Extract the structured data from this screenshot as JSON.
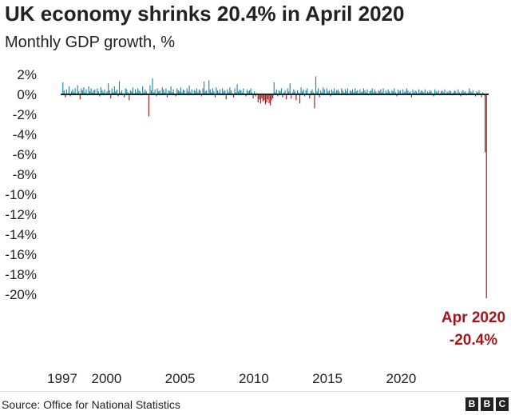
{
  "chart_data": {
    "type": "bar",
    "title": "UK economy shrinks 20.4% in April 2020",
    "subtitle": "Monthly GDP growth, %",
    "ylim": [
      -20,
      2
    ],
    "y_ticks": [
      2,
      0,
      -2,
      -4,
      -6,
      -8,
      -10,
      -12,
      -14,
      -16,
      -18,
      -20
    ],
    "y_tick_labels": [
      "2%",
      "0%",
      "-2%",
      "-4%",
      "-6%",
      "-8%",
      "-10%",
      "-12%",
      "-14%",
      "-16%",
      "-18%",
      "-20%"
    ],
    "x_tick_labels": [
      "1997",
      "2000",
      "2005",
      "2010",
      "2015",
      "2020"
    ],
    "start_year": 1997,
    "start_month": 1,
    "values": [
      1.2,
      0.4,
      -0.3,
      0.5,
      0.1,
      0.8,
      -0.2,
      0.3,
      0.5,
      0.2,
      0.6,
      0.1,
      0.9,
      0.3,
      -0.5,
      0.6,
      0.4,
      0.7,
      0.2,
      0.5,
      -0.1,
      0.8,
      0.3,
      0.6,
      0.2,
      0.4,
      0.5,
      0.1,
      0.6,
      0.3,
      -0.2,
      0.7,
      0.4,
      0.2,
      0.5,
      0.1,
      0.3,
      1.1,
      0.4,
      -0.4,
      0.6,
      0.2,
      0.8,
      0.3,
      0.5,
      -0.2,
      1.3,
      0.2,
      0.4,
      0.1,
      -0.3,
      0.6,
      0.5,
      0.2,
      -0.6,
      0.4,
      0.3,
      0.7,
      0.1,
      0.5,
      0.2,
      0.6,
      0.4,
      0.3,
      -0.1,
      0.8,
      0.2,
      0.5,
      0.3,
      0.1,
      -2.2,
      0.9,
      0.4,
      1.6,
      0.2,
      0.5,
      -0.2,
      0.6,
      0.3,
      0.4,
      0.1,
      0.7,
      0.5,
      0.2,
      0.6,
      -0.3,
      0.4,
      0.3,
      0.8,
      0.2,
      0.5,
      0.1,
      -0.2,
      0.6,
      0.4,
      0.3,
      0.7,
      0.2,
      0.5,
      0.4,
      0.1,
      0.6,
      0.3,
      0.9,
      0.2,
      0.5,
      -0.1,
      0.4,
      0.3,
      0.6,
      0.2,
      0.5,
      0.4,
      -0.2,
      0.6,
      1.3,
      0.3,
      0.4,
      0.1,
      1.4,
      0.5,
      0.2,
      0.6,
      0.3,
      -0.3,
      0.7,
      0.4,
      0.2,
      0.5,
      0.1,
      0.6,
      0.3,
      0.4,
      -0.5,
      0.5,
      0.2,
      0.7,
      0.4,
      0.1,
      -0.3,
      0.6,
      0.2,
      1.0,
      0.3,
      0.5,
      0.4,
      0.2,
      0.6,
      0.1,
      -0.2,
      0.5,
      0.3,
      0.4,
      0.6,
      0.2,
      -0.4,
      0.3,
      -0.2,
      0.1,
      -0.8,
      -0.5,
      -0.9,
      -0.4,
      -0.7,
      -0.6,
      -1.0,
      -0.8,
      -0.5,
      -0.9,
      -1.1,
      -0.6,
      -0.4,
      1.2,
      0.2,
      0.5,
      -0.2,
      0.4,
      0.3,
      0.6,
      -0.3,
      0.2,
      0.4,
      -0.5,
      0.6,
      0.3,
      1.1,
      -0.4,
      0.2,
      0.5,
      0.3,
      -0.6,
      0.4,
      0.2,
      -0.9,
      0.7,
      0.3,
      0.5,
      -0.2,
      0.4,
      0.6,
      0.1,
      -0.4,
      0.3,
      0.5,
      0.2,
      -1.4,
      1.8,
      0.3,
      0.6,
      -0.3,
      0.4,
      0.2,
      0.7,
      0.5,
      0.1,
      0.6,
      0.3,
      0.4,
      -0.2,
      0.5,
      0.3,
      0.6,
      0.2,
      0.4,
      0.5,
      0.3,
      0.1,
      0.6,
      0.4,
      0.2,
      0.5,
      0.3,
      0.6,
      0.1,
      0.4,
      0.3,
      0.5,
      0.2,
      0.6,
      0.3,
      0.4,
      0.1,
      0.5,
      0.2,
      0.3,
      0.6,
      0.4,
      0.2,
      0.5,
      -0.1,
      0.3,
      0.4,
      0.6,
      0.2,
      0.5,
      0.3,
      0.1,
      0.4,
      0.3,
      0.5,
      0.2,
      0.6,
      0.1,
      0.4,
      0.2,
      0.5,
      0.3,
      0.1,
      0.4,
      0.3,
      0.6,
      0.2,
      -0.2,
      0.5,
      0.3,
      0.4,
      0.1,
      0.5,
      0.2,
      0.3,
      0.6,
      0.4,
      0.2,
      0.3,
      -0.3,
      0.5,
      0.2,
      0.4,
      0.3,
      0.1,
      0.5,
      0.2,
      0.4,
      0.3,
      0.2,
      0.5,
      0.1,
      0.3,
      0.2,
      0.4,
      0.3,
      0.1,
      -0.2,
      0.5,
      0.3,
      0.2,
      0.4,
      -0.1,
      0.3,
      0.4,
      0.2,
      0.5,
      0.1,
      0.3,
      0.2,
      0.4,
      0.3,
      -0.1,
      0.2,
      0.4,
      0.3,
      0.1,
      0.5,
      0.2,
      -0.2,
      0.3,
      0.4,
      0.2,
      0.3,
      -0.1,
      0.2,
      0.6,
      0.3,
      0.2,
      0.4,
      0.1,
      -0.2,
      0.3,
      0.2,
      0.4,
      0.1,
      -0.3,
      0.2,
      -0.1,
      -5.8,
      -20.4
    ],
    "annotation": {
      "label": "Apr 2020",
      "value_label": "-20.4%",
      "value": -20.4
    },
    "colors": {
      "positive": "#1c8aa8",
      "negative": "#a5161a",
      "axis": "#222222",
      "annotation": "#a5161a"
    },
    "grid": false
  },
  "footer": {
    "source": "Source: Office for National Statistics",
    "logo_letters": [
      "B",
      "B",
      "C"
    ]
  }
}
